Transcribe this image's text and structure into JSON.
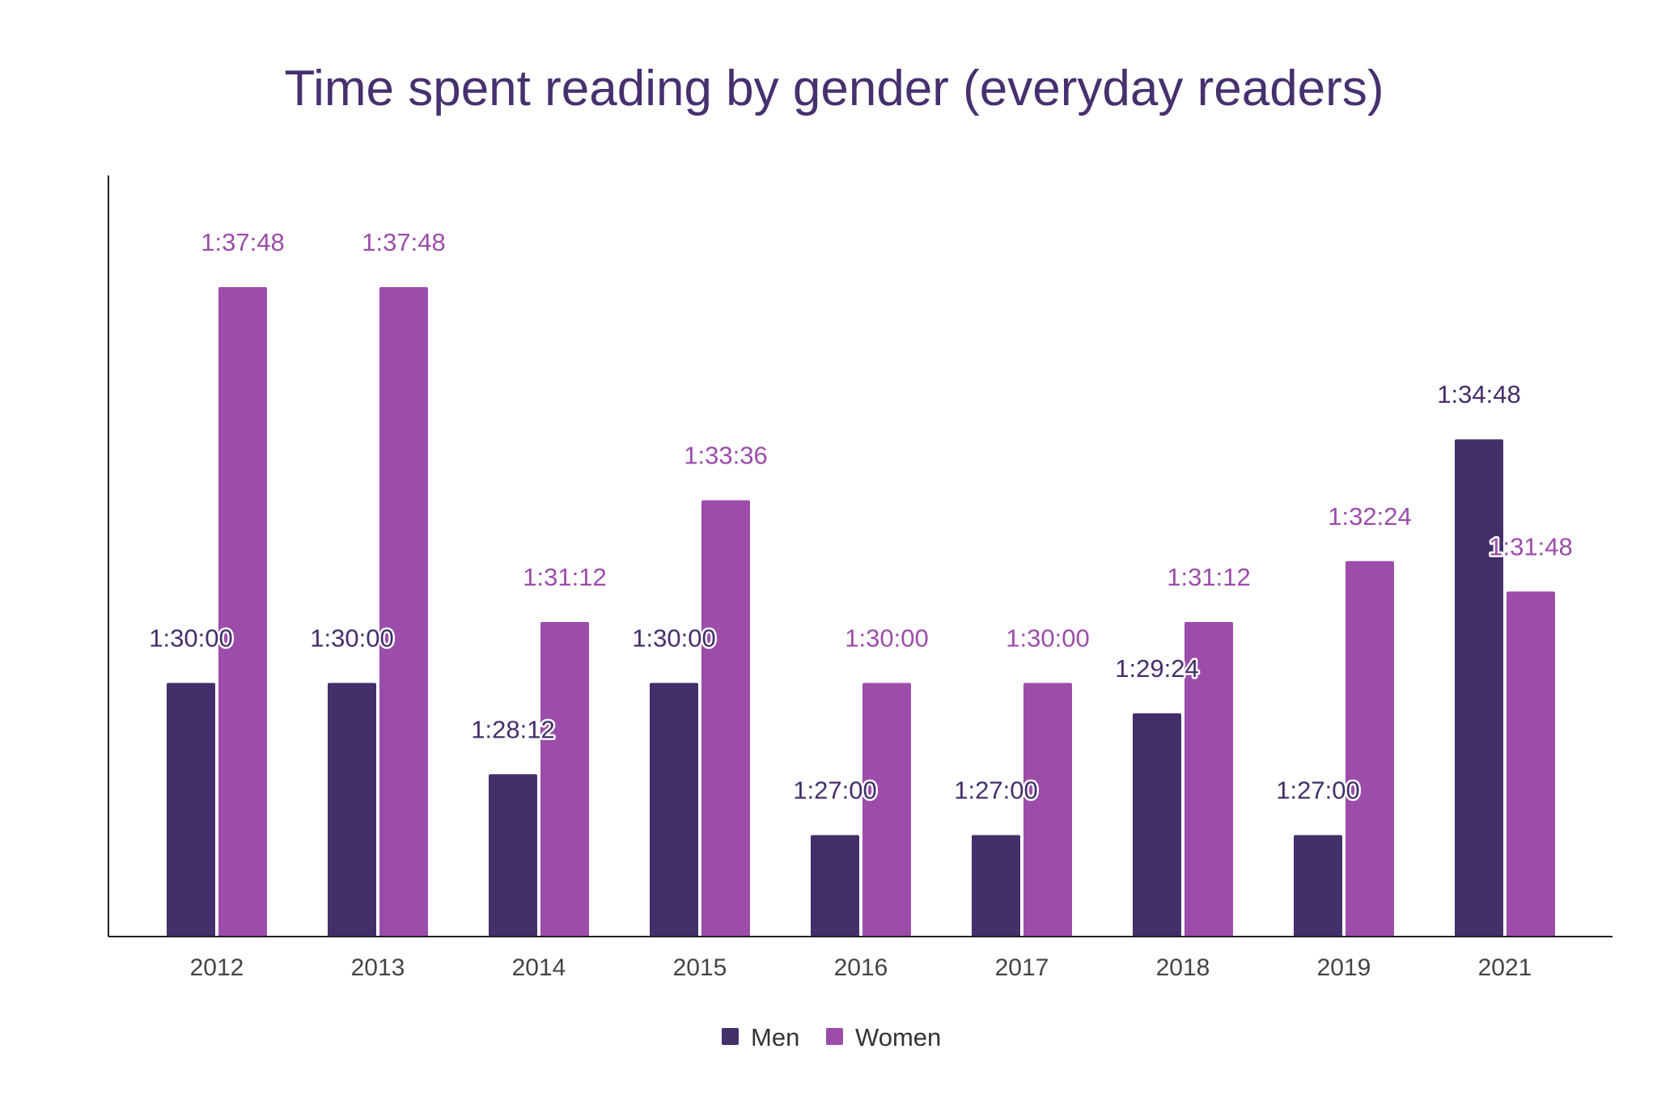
{
  "chart_data": {
    "type": "bar",
    "title": "Time spent reading by gender (everyday readers)",
    "xlabel": "",
    "ylabel": "",
    "categories": [
      "2012",
      "2013",
      "2014",
      "2015",
      "2016",
      "2017",
      "2018",
      "2019",
      "2021"
    ],
    "series": [
      {
        "name": "Men",
        "color": "#432f6a",
        "labels": [
          "1:30:00",
          "1:30:00",
          "1:28:12",
          "1:30:00",
          "1:27:00",
          "1:27:00",
          "1:29:24",
          "1:27:00",
          "1:34:48"
        ],
        "values_seconds": [
          5400,
          5400,
          5292,
          5400,
          5220,
          5220,
          5364,
          5220,
          5688
        ]
      },
      {
        "name": "Women",
        "color": "#9c4daa",
        "labels": [
          "1:37:48",
          "1:37:48",
          "1:31:12",
          "1:33:36",
          "1:30:00",
          "1:30:00",
          "1:31:12",
          "1:32:24",
          "1:31:48"
        ],
        "values_seconds": [
          5868,
          5868,
          5472,
          5616,
          5400,
          5400,
          5472,
          5544,
          5508
        ]
      }
    ],
    "ylim_seconds": [
      5100,
      6000
    ],
    "grid": false,
    "legend": "bottom-center"
  }
}
